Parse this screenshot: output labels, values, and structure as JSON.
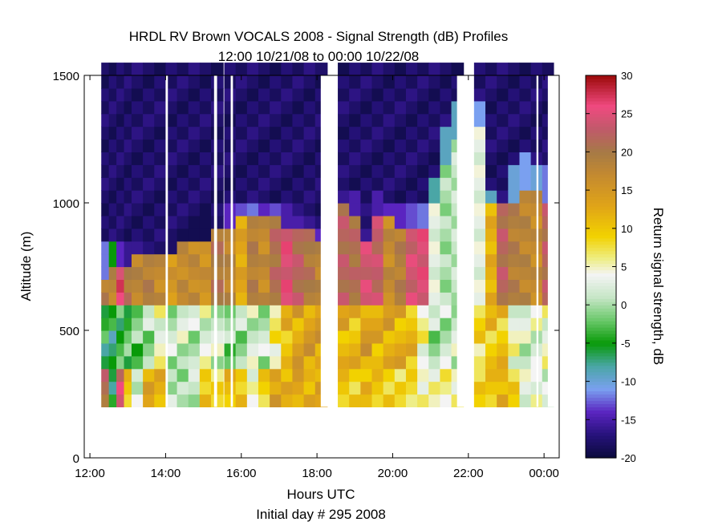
{
  "chart_data": {
    "type": "heatmap",
    "title": "HRDL RV Brown VOCALS 2008 - Signal Strength (dB) Profiles",
    "subtitle": "12:00 10/21/08 to 00:00 10/22/08",
    "xlabel": "Hours UTC",
    "xlabel2": "Initial day # 295  2008",
    "ylabel": "Altitude (m)",
    "colorbar_label": "Return signal strength, dB",
    "x_unit": "hours UTC",
    "xlim": [
      11.85,
      24.4
    ],
    "ylim": [
      0,
      1500
    ],
    "x_ticks": [
      12,
      14,
      16,
      18,
      20,
      22,
      24
    ],
    "x_tick_labels": [
      "12:00",
      "14:00",
      "16:00",
      "18:00",
      "20:00",
      "22:00",
      "00:00"
    ],
    "y_ticks": [
      0,
      500,
      1000,
      1500
    ],
    "y_tick_labels": [
      "0",
      "500",
      "1000",
      "1500"
    ],
    "clim": [
      -20,
      30
    ],
    "colorbar_ticks": [
      -20,
      -15,
      -10,
      -5,
      0,
      5,
      10,
      15,
      20,
      25,
      30
    ],
    "colorbar_tick_labels": [
      "-20",
      "-15",
      "-10",
      "-5",
      "0",
      "5",
      "10",
      "15",
      "20",
      "25",
      "30"
    ],
    "colormap": [
      {
        "value": -20,
        "color": "#0a0a3c"
      },
      {
        "value": -17,
        "color": "#26127a"
      },
      {
        "value": -14,
        "color": "#5a24c0"
      },
      {
        "value": -11,
        "color": "#7aa0f0"
      },
      {
        "value": -8,
        "color": "#4aa6a6"
      },
      {
        "value": -5,
        "color": "#089a08"
      },
      {
        "value": -2,
        "color": "#6ac86a"
      },
      {
        "value": 1,
        "color": "#c6e6c6"
      },
      {
        "value": 4,
        "color": "#f4f4f4"
      },
      {
        "value": 6,
        "color": "#eeee88"
      },
      {
        "value": 9,
        "color": "#f2d200"
      },
      {
        "value": 13,
        "color": "#e0a418"
      },
      {
        "value": 17,
        "color": "#c48a30"
      },
      {
        "value": 20,
        "color": "#a67a46"
      },
      {
        "value": 23,
        "color": "#c05a6a"
      },
      {
        "value": 26,
        "color": "#f04a80"
      },
      {
        "value": 30,
        "color": "#9c0a0a"
      }
    ],
    "heights": [
      200,
      250,
      300,
      350,
      400,
      450,
      500,
      550,
      600,
      650,
      700,
      750,
      800,
      850,
      900,
      950,
      1000,
      1050,
      1100,
      1150,
      1200,
      1250,
      1300,
      1350,
      1400,
      1450,
      1500
    ],
    "profiles": [
      {
        "t": 12.3,
        "cloud_base": 850,
        "cloud_top": 700,
        "top_color": -12,
        "cloud_core": 19,
        "mixed": -5,
        "surface": 21
      },
      {
        "t": 12.5,
        "cloud_base": 820,
        "cloud_top": 720,
        "top_color": -5,
        "cloud_core": 18,
        "mixed": -6,
        "surface": -6
      },
      {
        "t": 12.7,
        "cloud_base": 810,
        "cloud_top": 750,
        "top_color": -14,
        "cloud_core": 26,
        "mixed": -4,
        "surface": 24
      },
      {
        "t": 12.9,
        "cloud_base": 830,
        "cloud_top": 740,
        "top_color": -16,
        "cloud_core": 20,
        "mixed": -3,
        "surface": 10
      },
      {
        "t": 13.1,
        "cloud_base": 850,
        "cloud_top": 800,
        "top_color": -16,
        "cloud_core": 18,
        "mixed": -2,
        "surface": 2
      },
      {
        "t": 13.4,
        "cloud_base": 830,
        "cloud_top": 780,
        "top_color": -17,
        "cloud_core": 19,
        "mixed": 0,
        "surface": 13
      },
      {
        "t": 13.7,
        "cloud_base": 830,
        "cloud_top": 790,
        "top_color": -18,
        "cloud_core": 17,
        "mixed": 4,
        "surface": 12
      },
      {
        "t": 14.0,
        "cloud_base": 860,
        "cloud_top": 800,
        "top_color": -18,
        "cloud_core": 15,
        "mixed": 1,
        "surface": 1
      },
      {
        "t": 14.3,
        "cloud_base": 880,
        "cloud_top": 810,
        "top_color": -19,
        "cloud_core": 17,
        "mixed": 2,
        "surface": 0
      },
      {
        "t": 14.6,
        "cloud_base": 890,
        "cloud_top": 820,
        "top_color": -19,
        "cloud_core": 17,
        "mixed": 1,
        "surface": 1
      },
      {
        "t": 14.9,
        "cloud_base": 910,
        "cloud_top": 840,
        "top_color": -19,
        "cloud_core": 16,
        "mixed": 3,
        "surface": 10
      },
      {
        "t": 15.2,
        "cloud_base": 940,
        "cloud_top": 880,
        "top_color": -18,
        "cloud_core": 20,
        "mixed": 2,
        "surface": 8
      },
      {
        "t": 15.55,
        "cloud_base": 960,
        "cloud_top": 900,
        "top_color": -14,
        "cloud_core": 18,
        "mixed": -1,
        "surface": 11
      },
      {
        "t": 15.85,
        "cloud_base": 980,
        "cloud_top": 910,
        "top_color": -13,
        "cloud_core": 13,
        "mixed": 0,
        "surface": 10
      },
      {
        "t": 16.15,
        "cloud_base": 990,
        "cloud_top": 920,
        "top_color": -12,
        "cloud_core": 19,
        "mixed": 2,
        "surface": 4
      },
      {
        "t": 16.45,
        "cloud_base": 1000,
        "cloud_top": 930,
        "top_color": -14,
        "cloud_core": 17,
        "mixed": 1,
        "surface": 9
      },
      {
        "t": 16.75,
        "cloud_base": 980,
        "cloud_top": 920,
        "top_color": -13,
        "cloud_core": 21,
        "mixed": 6,
        "surface": 14
      },
      {
        "t": 17.05,
        "cloud_base": 960,
        "cloud_top": 900,
        "top_color": -15,
        "cloud_core": 25,
        "mixed": 11,
        "surface": 12
      },
      {
        "t": 17.35,
        "cloud_base": 940,
        "cloud_top": 880,
        "top_color": -15,
        "cloud_core": 22,
        "mixed": 13,
        "surface": 13
      },
      {
        "t": 17.65,
        "cloud_base": 950,
        "cloud_top": 890,
        "top_color": -16,
        "cloud_core": 20,
        "mixed": 14,
        "surface": 12
      },
      {
        "t": 17.95,
        "cloud_base": 880,
        "cloud_top": 820,
        "top_color": -14,
        "cloud_core": 18,
        "mixed": 14,
        "surface": 13
      },
      {
        "t": 18.55,
        "cloud_base": 1050,
        "cloud_top": 960,
        "top_color": -16,
        "cloud_core": 22,
        "mixed": 12,
        "surface": 10
      },
      {
        "t": 18.85,
        "cloud_base": 1020,
        "cloud_top": 950,
        "top_color": -15,
        "cloud_core": 21,
        "mixed": 11,
        "surface": 9
      },
      {
        "t": 19.15,
        "cloud_base": 900,
        "cloud_top": 820,
        "top_color": -16,
        "cloud_core": 24,
        "mixed": 14,
        "surface": 11
      },
      {
        "t": 19.45,
        "cloud_base": 1010,
        "cloud_top": 940,
        "top_color": -15,
        "cloud_core": 23,
        "mixed": 12,
        "surface": 10
      },
      {
        "t": 19.75,
        "cloud_base": 1000,
        "cloud_top": 920,
        "top_color": -14,
        "cloud_core": 17,
        "mixed": 13,
        "surface": 9
      },
      {
        "t": 20.05,
        "cloud_base": 980,
        "cloud_top": 900,
        "top_color": -14,
        "cloud_core": 19,
        "mixed": 12,
        "surface": 8
      },
      {
        "t": 20.35,
        "cloud_base": 960,
        "cloud_top": 890,
        "top_color": -13,
        "cloud_core": 24,
        "mixed": 11,
        "surface": 8
      },
      {
        "t": 20.65,
        "cloud_base": 960,
        "cloud_top": 880,
        "top_color": -12,
        "cloud_core": 25,
        "mixed": 5,
        "surface": 5
      },
      {
        "t": 20.95,
        "cloud_base": 1080,
        "cloud_top": 980,
        "top_color": -8,
        "cloud_core": 3,
        "mixed": 0,
        "surface": 5
      },
      {
        "t": 21.25,
        "cloud_base": 1300,
        "cloud_top": 1150,
        "top_color": -9,
        "cloud_core": 0,
        "mixed": 1,
        "surface": 6
      },
      {
        "t": 21.55,
        "cloud_base": 1400,
        "cloud_top": 1250,
        "top_color": -9,
        "cloud_core": 1,
        "mixed": 2,
        "surface": 5
      },
      {
        "t": 22.15,
        "cloud_base": 1400,
        "cloud_top": 1300,
        "top_color": -11,
        "cloud_core": 3,
        "mixed": 8,
        "surface": 9
      },
      {
        "t": 22.45,
        "cloud_base": 1050,
        "cloud_top": 990,
        "top_color": -9,
        "cloud_core": 12,
        "mixed": 10,
        "surface": 10
      },
      {
        "t": 22.75,
        "cloud_base": 1000,
        "cloud_top": 960,
        "top_color": -8,
        "cloud_core": 22,
        "mixed": 10,
        "surface": 12
      },
      {
        "t": 23.05,
        "cloud_base": 1120,
        "cloud_top": 1000,
        "top_color": -10,
        "cloud_core": 19,
        "mixed": 4,
        "surface": 9
      },
      {
        "t": 23.35,
        "cloud_base": 1200,
        "cloud_top": 1050,
        "top_color": -11,
        "cloud_core": 18,
        "mixed": 2,
        "surface": 3
      },
      {
        "t": 23.65,
        "cloud_base": 1150,
        "cloud_top": 1050,
        "top_color": -10,
        "cloud_core": 17,
        "mixed": 3,
        "surface": 4
      },
      {
        "t": 23.95,
        "cloud_base": 1150,
        "cloud_top": 1000,
        "top_color": -12,
        "cloud_core": 22,
        "mixed": 4,
        "surface": 2
      }
    ],
    "gaps": [
      [
        14.0,
        14.06
      ],
      [
        15.28,
        15.36
      ],
      [
        15.72,
        15.78
      ],
      [
        18.1,
        18.45
      ],
      [
        21.7,
        22.0
      ],
      [
        23.8,
        23.85
      ],
      [
        24.1,
        24.3
      ]
    ],
    "grid": false,
    "legend": "colorbar-right"
  }
}
